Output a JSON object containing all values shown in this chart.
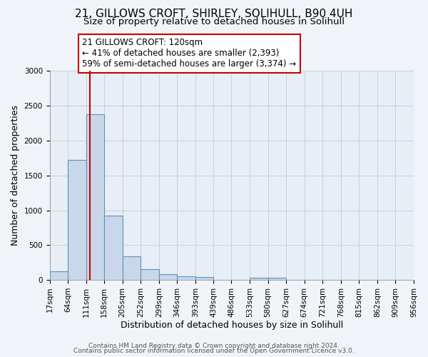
{
  "title": "21, GILLOWS CROFT, SHIRLEY, SOLIHULL, B90 4UH",
  "subtitle": "Size of property relative to detached houses in Solihull",
  "xlabel": "Distribution of detached houses by size in Solihull",
  "ylabel": "Number of detached properties",
  "bar_edges": [
    17,
    64,
    111,
    158,
    205,
    252,
    299,
    346,
    393,
    439,
    486,
    533,
    580,
    627,
    674,
    721,
    768,
    815,
    862,
    909,
    956
  ],
  "bar_heights": [
    125,
    1720,
    2380,
    920,
    340,
    155,
    80,
    50,
    40,
    0,
    0,
    30,
    30,
    0,
    0,
    0,
    0,
    0,
    0,
    0
  ],
  "bar_color": "#c8d8ea",
  "bar_edgecolor": "#6090b8",
  "bar_linewidth": 0.8,
  "property_line_x": 120,
  "property_line_color": "#cc0000",
  "annotation_line1": "21 GILLOWS CROFT: 120sqm",
  "annotation_line2": "← 41% of detached houses are smaller (2,393)",
  "annotation_line3": "59% of semi-detached houses are larger (3,374) →",
  "ylim": [
    0,
    3000
  ],
  "yticks": [
    0,
    500,
    1000,
    1500,
    2000,
    2500,
    3000
  ],
  "footer_line1": "Contains HM Land Registry data © Crown copyright and database right 2024.",
  "footer_line2": "Contains public sector information licensed under the Open Government Licence v3.0.",
  "background_color": "#f0f4f8",
  "plot_background_color": "#e8eef5",
  "title_fontsize": 11,
  "subtitle_fontsize": 9.5,
  "tick_label_fontsize": 7.5,
  "axis_label_fontsize": 9,
  "annotation_fontsize": 8.5,
  "footer_fontsize": 6.5
}
